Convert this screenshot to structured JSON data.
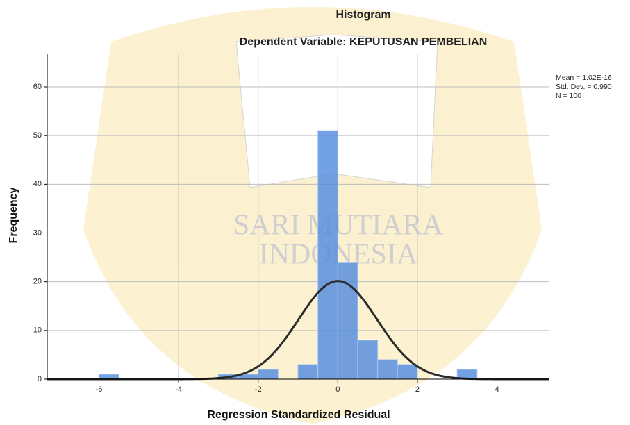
{
  "chart_data": {
    "type": "histogram",
    "title": "Histogram",
    "subtitle": "Dependent Variable: KEPUTUSAN PEMBELIAN",
    "x_label": "Regression Standardized Residual",
    "y_label": "Frequency",
    "bins": [
      -6,
      -5.5,
      -5,
      -4.5,
      -4,
      -3.5,
      -3,
      -2.5,
      -2,
      -1.5,
      -1,
      -0.5,
      0,
      0.5,
      1,
      1.5,
      2,
      2.5,
      3,
      3.5
    ],
    "values": [
      1,
      0,
      0,
      0,
      0,
      0,
      1,
      1,
      2,
      0,
      3,
      51,
      24,
      8,
      4,
      3,
      0,
      0,
      2
    ],
    "color": "#4f8ae0",
    "xlim": [
      -7.3,
      5.3
    ],
    "ylim": [
      0,
      66.7
    ],
    "xticks": [
      -6,
      -4,
      -2,
      0,
      2,
      4
    ],
    "yticks": [
      0,
      10,
      20,
      30,
      40,
      50,
      60
    ],
    "grid": true,
    "normal_curve": {
      "mean": 1.02e-16,
      "std": 0.99,
      "n": 100,
      "color": "#2b2b2b",
      "labels": [
        "Mean = 1.02E-16",
        "Std. Dev. = 0.990",
        "N = 100"
      ]
    }
  },
  "watermark": [
    "SARI MUTIARA",
    "INDONESIA"
  ]
}
